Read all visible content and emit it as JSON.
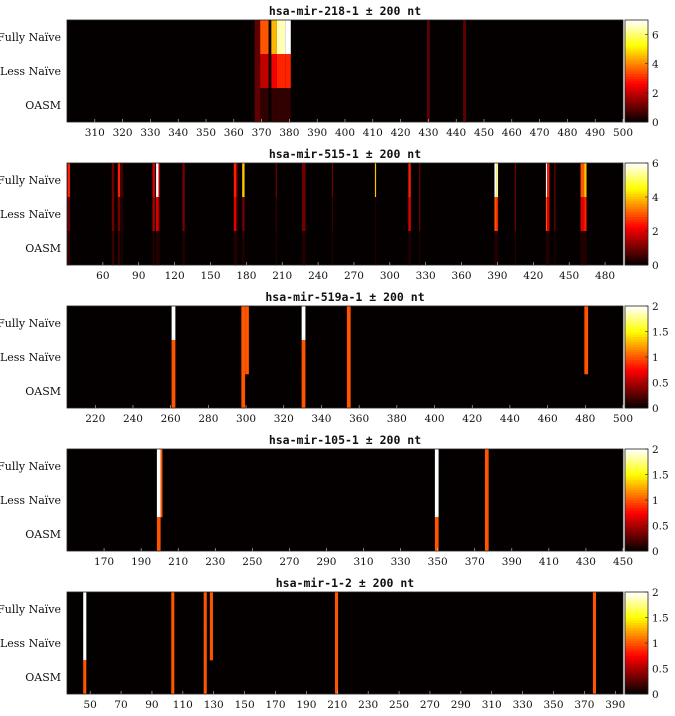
{
  "colors": {
    "colormap": "hot",
    "background": "#050000"
  },
  "chart_data": [
    {
      "type": "heatmap",
      "title": "hsa-mir-218-1 ± 200 nt",
      "rows": [
        "Fully Naïve",
        "Less Naïve",
        "OASM"
      ],
      "xlim": [
        300,
        500
      ],
      "xticks": [
        310,
        320,
        330,
        340,
        350,
        360,
        370,
        380,
        390,
        400,
        410,
        420,
        430,
        440,
        450,
        460,
        470,
        480,
        490,
        500
      ],
      "clim": [
        0,
        7
      ],
      "cbticks": [
        0,
        2,
        4,
        6
      ],
      "columns": [
        {
          "x": 368,
          "w": 2,
          "v": [
            1.0,
            1.0,
            1.0
          ]
        },
        {
          "x": 370,
          "w": 3,
          "v": [
            3.5,
            2.0,
            0.5
          ]
        },
        {
          "x": 374,
          "w": 2,
          "v": [
            4.5,
            2.5,
            0.5
          ]
        },
        {
          "x": 376,
          "w": 3,
          "v": [
            6.5,
            3.0,
            0.5
          ]
        },
        {
          "x": 379,
          "w": 2,
          "v": [
            7.0,
            3.0,
            0.5
          ]
        },
        {
          "x": 430,
          "w": 1,
          "v": [
            1.0,
            1.0,
            1.0
          ]
        },
        {
          "x": 443,
          "w": 1,
          "v": [
            1.0,
            1.0,
            1.0
          ]
        }
      ]
    },
    {
      "type": "heatmap",
      "title": "hsa-mir-515-1 ± 200 nt",
      "rows": [
        "Fully Naïve",
        "Less Naïve",
        "OASM"
      ],
      "xlim": [
        30,
        495
      ],
      "xticks": [
        60,
        90,
        120,
        150,
        180,
        210,
        240,
        270,
        300,
        330,
        360,
        390,
        420,
        450,
        480
      ],
      "clim": [
        0,
        6
      ],
      "cbticks": [
        0,
        2,
        4,
        6
      ],
      "columns": [
        {
          "x": 31,
          "w": 2,
          "v": [
            2.5,
            1.0,
            0.5
          ]
        },
        {
          "x": 68,
          "w": 2,
          "v": [
            1.0,
            1.0,
            0.5
          ]
        },
        {
          "x": 73,
          "w": 2,
          "v": [
            2.5,
            1.0,
            0.5
          ]
        },
        {
          "x": 76,
          "w": 1,
          "v": [
            1.0,
            0.5,
            0.3
          ]
        },
        {
          "x": 102,
          "w": 2,
          "v": [
            2.0,
            1.5,
            0.3
          ]
        },
        {
          "x": 105,
          "w": 2,
          "v": [
            6.0,
            2.0,
            0.3
          ]
        },
        {
          "x": 107,
          "w": 1,
          "v": [
            2.0,
            1.0,
            0.3
          ]
        },
        {
          "x": 127,
          "w": 2,
          "v": [
            1.0,
            1.0,
            0.3
          ]
        },
        {
          "x": 170,
          "w": 2,
          "v": [
            2.5,
            2.0,
            0.3
          ]
        },
        {
          "x": 172,
          "w": 1,
          "v": [
            1.5,
            1.0,
            0.3
          ]
        },
        {
          "x": 177,
          "w": 2,
          "v": [
            4.0,
            1.0,
            0.3
          ]
        },
        {
          "x": 205,
          "w": 1,
          "v": [
            1.0,
            0.5,
            0.3
          ]
        },
        {
          "x": 227,
          "w": 3,
          "v": [
            1.0,
            1.0,
            0.3
          ]
        },
        {
          "x": 252,
          "w": 1,
          "v": [
            1.0,
            0.5,
            0.3
          ]
        },
        {
          "x": 288,
          "w": 1,
          "v": [
            4.0,
            0.3,
            0.3
          ]
        },
        {
          "x": 316,
          "w": 2,
          "v": [
            2.5,
            2.0,
            0.3
          ]
        },
        {
          "x": 325,
          "w": 1,
          "v": [
            1.0,
            1.0,
            0.3
          ]
        },
        {
          "x": 388,
          "w": 2,
          "v": [
            6.0,
            3.0,
            0.3
          ]
        },
        {
          "x": 390,
          "w": 1,
          "v": [
            5.0,
            2.5,
            0.3
          ]
        },
        {
          "x": 405,
          "w": 1,
          "v": [
            1.0,
            1.0,
            0.3
          ]
        },
        {
          "x": 431,
          "w": 1,
          "v": [
            6.0,
            3.0,
            0.3
          ]
        },
        {
          "x": 432,
          "w": 2,
          "v": [
            2.5,
            2.0,
            0.3
          ]
        },
        {
          "x": 438,
          "w": 1,
          "v": [
            1.0,
            1.0,
            0.3
          ]
        },
        {
          "x": 460,
          "w": 3,
          "v": [
            3.0,
            2.0,
            0.3
          ]
        },
        {
          "x": 463,
          "w": 2,
          "v": [
            4.0,
            2.5,
            0.3
          ]
        }
      ]
    },
    {
      "type": "heatmap",
      "title": "hsa-mir-519a-1 ± 200 nt",
      "rows": [
        "Fully Naïve",
        "Less Naïve",
        "OASM"
      ],
      "xlim": [
        205,
        500
      ],
      "xticks": [
        220,
        240,
        260,
        280,
        300,
        320,
        340,
        360,
        380,
        400,
        420,
        440,
        460,
        480,
        500
      ],
      "clim": [
        0,
        2
      ],
      "cbticks": [
        0,
        0.5,
        1,
        1.5,
        2
      ],
      "columns": [
        {
          "x": 261,
          "w": 2,
          "v": [
            2.0,
            1.0,
            1.0
          ]
        },
        {
          "x": 298,
          "w": 2,
          "v": [
            1.0,
            1.0,
            1.0
          ]
        },
        {
          "x": 300,
          "w": 2,
          "v": [
            1.0,
            1.0,
            0.0
          ]
        },
        {
          "x": 330,
          "w": 2,
          "v": [
            2.0,
            1.0,
            1.0
          ]
        },
        {
          "x": 354,
          "w": 2,
          "v": [
            1.0,
            1.0,
            1.0
          ]
        },
        {
          "x": 480,
          "w": 2,
          "v": [
            1.0,
            1.0,
            0.0
          ]
        }
      ]
    },
    {
      "type": "heatmap",
      "title": "hsa-mir-105-1 ± 200 nt",
      "rows": [
        "Fully Naïve",
        "Less Naïve",
        "OASM"
      ],
      "xlim": [
        150,
        450
      ],
      "xticks": [
        170,
        190,
        210,
        230,
        250,
        270,
        290,
        310,
        330,
        350,
        370,
        390,
        410,
        430,
        450
      ],
      "clim": [
        0,
        2
      ],
      "cbticks": [
        0,
        0.5,
        1,
        1.5,
        2
      ],
      "columns": [
        {
          "x": 199,
          "w": 2,
          "v": [
            2.0,
            2.0,
            1.0
          ]
        },
        {
          "x": 201,
          "w": 1,
          "v": [
            1.0,
            1.0,
            0.0
          ]
        },
        {
          "x": 349,
          "w": 2,
          "v": [
            2.0,
            2.0,
            1.0
          ]
        },
        {
          "x": 376,
          "w": 2,
          "v": [
            1.0,
            1.0,
            1.0
          ]
        }
      ]
    },
    {
      "type": "heatmap",
      "title": "hsa-mir-1-2 ± 200 nt",
      "rows": [
        "Fully Naïve",
        "Less Naïve",
        "OASM"
      ],
      "xlim": [
        35,
        395
      ],
      "xticks": [
        50,
        70,
        90,
        110,
        130,
        150,
        170,
        190,
        210,
        230,
        250,
        270,
        290,
        310,
        330,
        350,
        370,
        390
      ],
      "clim": [
        0,
        2
      ],
      "cbticks": [
        0,
        0.5,
        1,
        1.5,
        2
      ],
      "columns": [
        {
          "x": 46,
          "w": 2,
          "v": [
            2.0,
            2.0,
            1.0
          ]
        },
        {
          "x": 103,
          "w": 2,
          "v": [
            1.0,
            1.0,
            1.0
          ]
        },
        {
          "x": 124,
          "w": 2,
          "v": [
            1.0,
            1.0,
            1.0
          ]
        },
        {
          "x": 128,
          "w": 2,
          "v": [
            1.0,
            1.0,
            0.0
          ]
        },
        {
          "x": 209,
          "w": 2,
          "v": [
            1.0,
            1.0,
            1.0
          ]
        },
        {
          "x": 376,
          "w": 2,
          "v": [
            1.0,
            1.0,
            1.0
          ]
        }
      ]
    }
  ]
}
